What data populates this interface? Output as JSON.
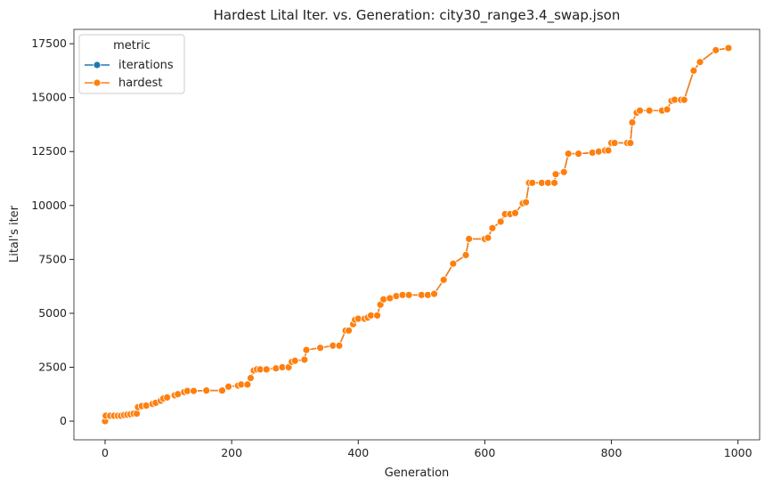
{
  "chart_data": {
    "type": "line",
    "title": "Hardest Lital Iter. vs. Generation: city30_range3.4_swap.json",
    "xlabel": "Generation",
    "ylabel": "Lital's iter",
    "legend_title": "metric",
    "legend": "upper left",
    "x": [
      0,
      1,
      8,
      14,
      20,
      25,
      30,
      35,
      40,
      45,
      50,
      52,
      58,
      65,
      75,
      80,
      88,
      92,
      98,
      110,
      115,
      125,
      130,
      140,
      160,
      185,
      195,
      210,
      215,
      225,
      230,
      235,
      240,
      245,
      255,
      270,
      280,
      290,
      295,
      300,
      315,
      318,
      340,
      360,
      370,
      380,
      385,
      392,
      395,
      400,
      410,
      415,
      420,
      430,
      435,
      440,
      450,
      460,
      470,
      480,
      500,
      510,
      520,
      535,
      550,
      570,
      575,
      600,
      605,
      612,
      625,
      632,
      640,
      648,
      660,
      665,
      670,
      675,
      690,
      700,
      710,
      712,
      725,
      732,
      748,
      770,
      780,
      790,
      795,
      800,
      805,
      825,
      830,
      833,
      840,
      845,
      860,
      880,
      888,
      895,
      900,
      910,
      915,
      930,
      940,
      965,
      985
    ],
    "series": [
      {
        "name": "iterations",
        "color": "#1f77b4",
        "values": [
          0,
          250,
          250,
          250,
          250,
          250,
          280,
          300,
          320,
          350,
          350,
          650,
          700,
          720,
          800,
          850,
          950,
          1050,
          1100,
          1200,
          1250,
          1350,
          1400,
          1400,
          1420,
          1420,
          1600,
          1650,
          1700,
          1700,
          2000,
          2350,
          2400,
          2400,
          2400,
          2450,
          2500,
          2500,
          2750,
          2800,
          2850,
          3300,
          3400,
          3500,
          3500,
          4200,
          4200,
          4500,
          4700,
          4750,
          4750,
          4800,
          4900,
          4900,
          5400,
          5650,
          5700,
          5800,
          5850,
          5850,
          5850,
          5850,
          5900,
          6550,
          7300,
          7700,
          8450,
          8450,
          8500,
          8950,
          9250,
          9600,
          9600,
          9650,
          10100,
          10150,
          11050,
          11050,
          11050,
          11050,
          11050,
          11450,
          11550,
          12400,
          12400,
          12450,
          12500,
          12550,
          12550,
          12900,
          12900,
          12900,
          12900,
          13850,
          14300,
          14400,
          14400,
          14400,
          14450,
          14850,
          14900,
          14900,
          14900,
          16250,
          16650,
          17200,
          17300
        ]
      },
      {
        "name": "hardest",
        "color": "#ff7f0e",
        "values": [
          0,
          250,
          250,
          250,
          250,
          250,
          280,
          300,
          320,
          350,
          350,
          650,
          700,
          720,
          800,
          850,
          950,
          1050,
          1100,
          1200,
          1250,
          1350,
          1400,
          1400,
          1420,
          1420,
          1600,
          1650,
          1700,
          1700,
          2000,
          2350,
          2400,
          2400,
          2400,
          2450,
          2500,
          2500,
          2750,
          2800,
          2850,
          3300,
          3400,
          3500,
          3500,
          4200,
          4200,
          4500,
          4700,
          4750,
          4750,
          4800,
          4900,
          4900,
          5400,
          5650,
          5700,
          5800,
          5850,
          5850,
          5850,
          5850,
          5900,
          6550,
          7300,
          7700,
          8450,
          8450,
          8500,
          8950,
          9250,
          9600,
          9600,
          9650,
          10100,
          10150,
          11050,
          11050,
          11050,
          11050,
          11050,
          11450,
          11550,
          12400,
          12400,
          12450,
          12500,
          12550,
          12550,
          12900,
          12900,
          12900,
          12900,
          13850,
          14300,
          14400,
          14400,
          14400,
          14450,
          14850,
          14900,
          14900,
          14900,
          16250,
          16650,
          17200,
          17300
        ]
      }
    ],
    "xlim": [
      -49.25,
      1034.25
    ],
    "xticks": [
      0,
      200,
      400,
      600,
      800,
      1000
    ],
    "ylim": [
      -865,
      18165
    ],
    "yticks": [
      0,
      2500,
      5000,
      7500,
      10000,
      12500,
      15000,
      17500
    ]
  }
}
